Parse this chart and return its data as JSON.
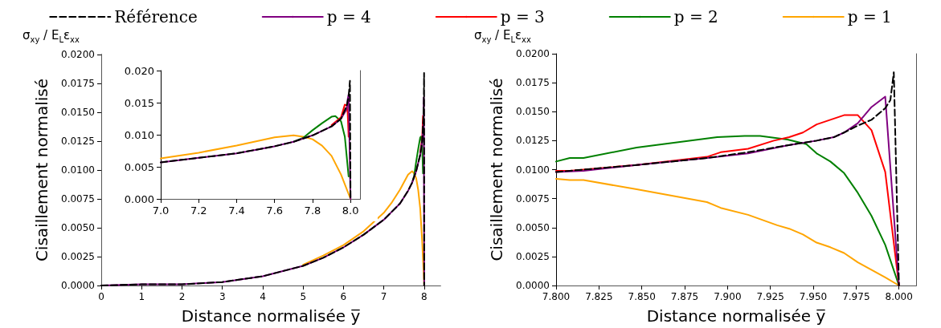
{
  "chart_data": [
    {
      "type": "line",
      "xlabel": "Distance normalisée y̅",
      "ylabel": "Cisaillement normalisé",
      "annotations": [
        "σ$_{xy}$ / E$_{L}$ε$_{xx}$"
      ],
      "legend": "top",
      "marker": "none",
      "grid": false,
      "xlim": [
        0,
        8.4
      ],
      "xticks": [
        0,
        1,
        2,
        3,
        4,
        5,
        6,
        7,
        8
      ],
      "ylim": [
        0,
        0.02
      ],
      "yticks": [
        {
          "value": 0,
          "label": "0.0000"
        },
        {
          "value": 0.0025,
          "label": "0.0025"
        },
        {
          "value": 0.005,
          "label": "0.0050"
        },
        {
          "value": 0.0075,
          "label": "0.0075"
        },
        {
          "value": 0.01,
          "label": "0.0100"
        },
        {
          "value": 0.0125,
          "label": "0.0125"
        },
        {
          "value": 0.015,
          "label": "0.0150"
        },
        {
          "value": 0.0175,
          "label": "0.0175"
        },
        {
          "value": 0.02,
          "label": "0.0200"
        }
      ],
      "series": [
        {
          "name": "Référence",
          "color": "#000000",
          "line_style": "dashed",
          "x": [
            0,
            1,
            2,
            3,
            4,
            5,
            5.5,
            6,
            6.5,
            7,
            7.2,
            7.4,
            7.6,
            7.7,
            7.8,
            7.9,
            7.95,
            7.98,
            7.99,
            7.997,
            8.0
          ],
          "values": [
            0,
            0.0001,
            0.0001,
            0.0003,
            0.0008,
            0.0017,
            0.0024,
            0.0033,
            0.0044,
            0.0057,
            0.0064,
            0.0071,
            0.0082,
            0.0089,
            0.0099,
            0.0113,
            0.0125,
            0.0145,
            0.016,
            0.0184,
            0
          ]
        },
        {
          "name": "p = 4",
          "color": "#800080",
          "x": [
            0,
            1,
            2,
            3,
            4,
            5,
            5.5,
            6,
            6.5,
            7,
            7.2,
            7.4,
            7.6,
            7.7,
            7.8,
            7.9,
            7.95,
            7.98,
            7.985,
            7.99,
            8.0
          ],
          "values": [
            0,
            0.0001,
            0.0001,
            0.0003,
            0.0008,
            0.0017,
            0.0024,
            0.0033,
            0.0044,
            0.0057,
            0.0064,
            0.0071,
            0.0082,
            0.0089,
            0.0099,
            0.0113,
            0.0125,
            0.014,
            0.0155,
            0.0163,
            0
          ]
        },
        {
          "name": "p = 3",
          "color": "#ff0000",
          "x": [
            7.9,
            7.95,
            7.97,
            7.98
          ],
          "values": [
            0.0115,
            0.0127,
            0.0147,
            0.0146
          ]
        },
        {
          "name": "p = 2",
          "color": "#008000",
          "x": [
            7.7,
            7.75,
            7.8,
            7.85,
            7.9,
            7.92,
            7.95,
            7.97
          ],
          "values": [
            0.0089,
            0.0095,
            0.0107,
            0.0118,
            0.0128,
            0.0129,
            0.0121,
            0.0097
          ]
        },
        {
          "name": "p = 1",
          "color": "#ffa500",
          "x": [
            5,
            5.5,
            6,
            6.5,
            7,
            7.2,
            7.4,
            7.6,
            7.7,
            7.75,
            7.8,
            7.85,
            7.9,
            7.95,
            8.0
          ],
          "values": [
            0.0018,
            0.0026,
            0.0035,
            0.0047,
            0.0063,
            0.0072,
            0.0083,
            0.0096,
            0.0099,
            0.0097,
            0.0093,
            0.0083,
            0.0067,
            0.0038,
            0
          ]
        }
      ]
    },
    {
      "type": "line",
      "marker": "none",
      "grid": false,
      "xlim": [
        7,
        8.05
      ],
      "xticks": [
        {
          "value": 7,
          "label": "7.0"
        },
        {
          "value": 7.2,
          "label": "7.2"
        },
        {
          "value": 7.4,
          "label": "7.4"
        },
        {
          "value": 7.6,
          "label": "7.6"
        },
        {
          "value": 7.8,
          "label": "7.8"
        },
        {
          "value": 8,
          "label": "8.0"
        }
      ],
      "ylim": [
        0,
        0.02
      ],
      "yticks": [
        {
          "value": 0,
          "label": "0.000"
        },
        {
          "value": 0.005,
          "label": "0.005"
        },
        {
          "value": 0.01,
          "label": "0.010"
        },
        {
          "value": 0.015,
          "label": "0.015"
        },
        {
          "value": 0.02,
          "label": "0.020"
        }
      ],
      "series": [
        {
          "color": "#000000",
          "line_style": "dashed",
          "x": [
            7,
            7.2,
            7.4,
            7.6,
            7.7,
            7.8,
            7.9,
            7.95,
            7.98,
            7.99,
            7.997,
            8.0
          ],
          "values": [
            0.0057,
            0.0064,
            0.0071,
            0.0082,
            0.0089,
            0.0099,
            0.0113,
            0.0125,
            0.0145,
            0.016,
            0.0184,
            0
          ]
        },
        {
          "color": "#800080",
          "x": [
            7,
            7.2,
            7.4,
            7.6,
            7.7,
            7.8,
            7.9,
            7.95,
            7.98,
            7.985,
            7.99,
            8.0
          ],
          "values": [
            0.0057,
            0.0064,
            0.0071,
            0.0082,
            0.0089,
            0.0099,
            0.0113,
            0.0125,
            0.014,
            0.0155,
            0.0163,
            0
          ]
        },
        {
          "color": "#ff0000",
          "x": [
            7.9,
            7.95,
            7.97,
            7.98,
            7.985,
            7.99
          ],
          "values": [
            0.0115,
            0.0127,
            0.0147,
            0.0146,
            0.0134,
            0.0097
          ]
        },
        {
          "color": "#008000",
          "x": [
            7.7,
            7.75,
            7.8,
            7.85,
            7.9,
            7.92,
            7.95,
            7.97,
            7.99
          ],
          "values": [
            0.0089,
            0.0095,
            0.0107,
            0.0118,
            0.0128,
            0.0129,
            0.0121,
            0.0097,
            0.0035
          ]
        },
        {
          "color": "#ffa500",
          "x": [
            7,
            7.2,
            7.4,
            7.6,
            7.7,
            7.75,
            7.8,
            7.85,
            7.9,
            7.95,
            8.0
          ],
          "values": [
            0.0063,
            0.0072,
            0.0083,
            0.0096,
            0.0099,
            0.0097,
            0.0093,
            0.0083,
            0.0067,
            0.0038,
            0
          ]
        }
      ]
    },
    {
      "type": "line",
      "xlabel": "Distance normalisée y̅",
      "ylabel": "Cisaillement normalisé",
      "annotations": [
        "σ$_{xy}$ / E$_{L}$ε$_{xx}$"
      ],
      "marker": "none",
      "grid": false,
      "xlim": [
        7.8,
        8.01
      ],
      "xticks": [
        {
          "value": 7.8,
          "label": "7.800"
        },
        {
          "value": 7.825,
          "label": "7.825"
        },
        {
          "value": 7.85,
          "label": "7.850"
        },
        {
          "value": 7.875,
          "label": "7.875"
        },
        {
          "value": 7.9,
          "label": "7.900"
        },
        {
          "value": 7.925,
          "label": "7.925"
        },
        {
          "value": 7.95,
          "label": "7.950"
        },
        {
          "value": 7.975,
          "label": "7.975"
        },
        {
          "value": 8,
          "label": "8.000"
        }
      ],
      "ylim": [
        0,
        0.02
      ],
      "yticks": [
        {
          "value": 0,
          "label": "0.0000"
        },
        {
          "value": 0.0025,
          "label": "0.0025"
        },
        {
          "value": 0.005,
          "label": "0.0050"
        },
        {
          "value": 0.0075,
          "label": "0.0075"
        },
        {
          "value": 0.01,
          "label": "0.0100"
        },
        {
          "value": 0.0125,
          "label": "0.0125"
        },
        {
          "value": 0.015,
          "label": "0.0150"
        },
        {
          "value": 0.0175,
          "label": "0.0175"
        },
        {
          "value": 0.02,
          "label": "0.0200"
        }
      ],
      "series": [
        {
          "color": "#000000",
          "line_style": "dashed",
          "x": [
            7.8,
            7.816,
            7.847,
            7.888,
            7.912,
            7.935,
            7.952,
            7.962,
            7.968,
            7.976,
            7.984,
            7.992,
            7.995,
            7.997,
            8.0
          ],
          "values": [
            0.0098,
            0.01,
            0.0104,
            0.011,
            0.0115,
            0.0121,
            0.0125,
            0.0128,
            0.0132,
            0.0138,
            0.0143,
            0.0153,
            0.016,
            0.0184,
            0
          ]
        },
        {
          "color": "#800080",
          "x": [
            7.8,
            7.816,
            7.847,
            7.888,
            7.912,
            7.935,
            7.952,
            7.962,
            7.968,
            7.976,
            7.984,
            7.992,
            8.0
          ],
          "values": [
            0.0098,
            0.0099,
            0.0104,
            0.011,
            0.0114,
            0.0121,
            0.0125,
            0.0128,
            0.0132,
            0.014,
            0.0154,
            0.0163,
            0
          ]
        },
        {
          "color": "#ff0000",
          "x": [
            7.8,
            7.808,
            7.847,
            7.888,
            7.896,
            7.912,
            7.927,
            7.936,
            7.944,
            7.952,
            7.96,
            7.968,
            7.976,
            7.984,
            7.992,
            8.0
          ],
          "values": [
            0.0099,
            0.0099,
            0.0104,
            0.0111,
            0.0115,
            0.0118,
            0.0125,
            0.0128,
            0.0132,
            0.0139,
            0.0143,
            0.0147,
            0.0147,
            0.0134,
            0.0098,
            0
          ]
        },
        {
          "color": "#008000",
          "x": [
            7.8,
            7.808,
            7.816,
            7.847,
            7.894,
            7.91,
            7.919,
            7.935,
            7.946,
            7.952,
            7.96,
            7.968,
            7.976,
            7.984,
            7.992,
            8.0
          ],
          "values": [
            0.0107,
            0.011,
            0.011,
            0.0119,
            0.0128,
            0.0129,
            0.0129,
            0.0126,
            0.0122,
            0.0114,
            0.0107,
            0.0097,
            0.008,
            0.006,
            0.0035,
            0
          ]
        },
        {
          "color": "#ffa500",
          "x": [
            7.8,
            7.808,
            7.816,
            7.847,
            7.888,
            7.896,
            7.912,
            7.929,
            7.936,
            7.944,
            7.952,
            7.96,
            7.968,
            7.976,
            7.992,
            8.0
          ],
          "values": [
            0.0092,
            0.0091,
            0.0091,
            0.0083,
            0.0072,
            0.0067,
            0.0061,
            0.0052,
            0.0049,
            0.0044,
            0.0037,
            0.0033,
            0.0028,
            0.002,
            0.0007,
            0
          ]
        }
      ]
    }
  ]
}
